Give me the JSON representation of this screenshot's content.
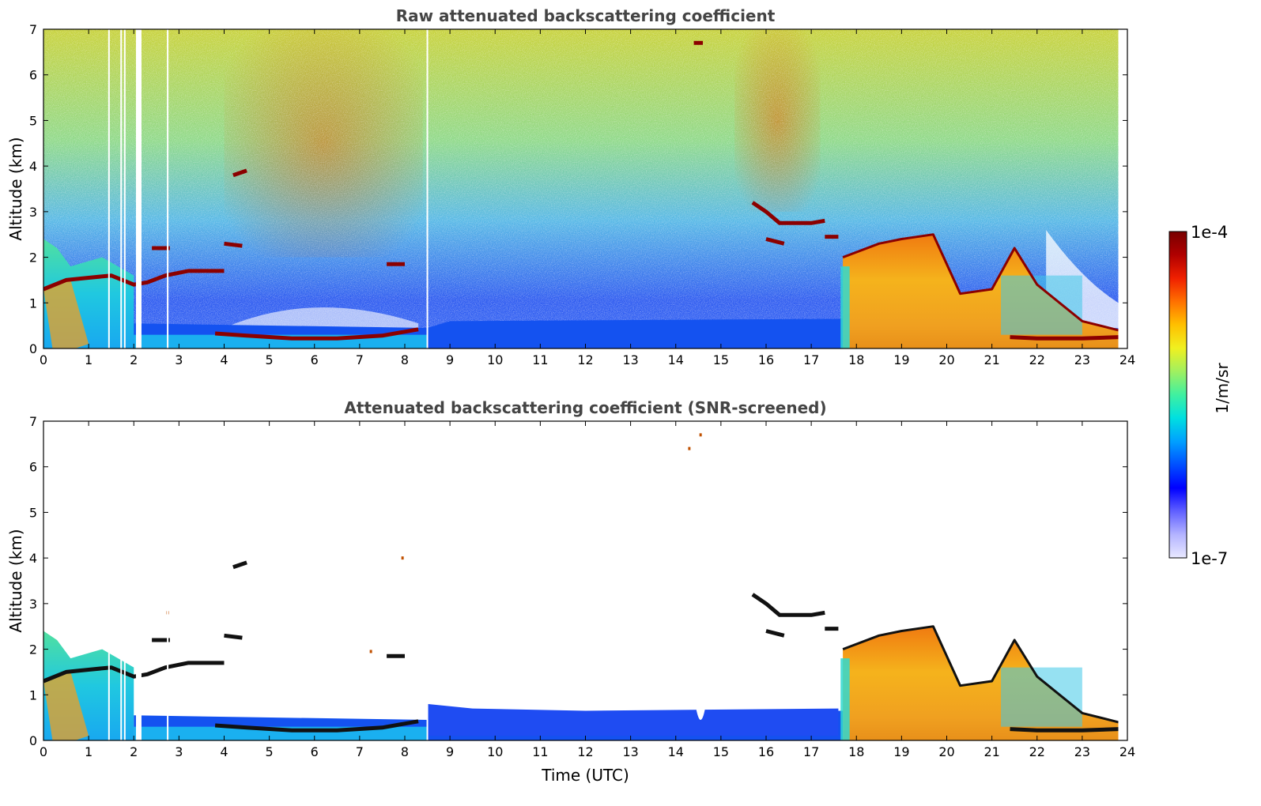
{
  "chart_data": [
    {
      "type": "heatmap",
      "title": "Raw attenuated backscattering coefficient",
      "xlabel": "",
      "ylabel": "Altitude (km)",
      "xlim": [
        0,
        24
      ],
      "ylim": [
        0,
        7
      ],
      "x_ticks": [
        0,
        1,
        2,
        3,
        4,
        5,
        6,
        7,
        8,
        9,
        10,
        11,
        12,
        13,
        14,
        15,
        16,
        17,
        18,
        19,
        20,
        21,
        22,
        23,
        24
      ],
      "y_ticks": [
        0,
        1,
        2,
        3,
        4,
        5,
        6,
        7
      ],
      "data_end_time": 23.8,
      "gaps_utc": [
        1.45,
        1.72,
        1.8,
        2.1,
        2.75,
        8.5
      ],
      "layers": [
        {
          "kind": "boundary-layer-top",
          "t": [
            0,
            0.5,
            1.0,
            1.5,
            2.0,
            2.3,
            2.7,
            3.2,
            4.0
          ],
          "alt": [
            1.3,
            1.5,
            1.55,
            1.6,
            1.4,
            1.45,
            1.6,
            1.7,
            1.7
          ]
        },
        {
          "kind": "cloud",
          "t": [
            4.2,
            4.5
          ],
          "alt": [
            3.8,
            3.9
          ]
        },
        {
          "kind": "cloud",
          "t": [
            4.0,
            4.4
          ],
          "alt": [
            2.3,
            2.25
          ]
        },
        {
          "kind": "cloud",
          "t": [
            2.4,
            2.8
          ],
          "alt": [
            2.2,
            2.2
          ]
        },
        {
          "kind": "cloud",
          "t": [
            7.6,
            8.0
          ],
          "alt": [
            1.85,
            1.85
          ]
        },
        {
          "kind": "low-layer",
          "t": [
            3.8,
            4.5,
            5.5,
            6.5,
            7.5,
            8.3
          ],
          "alt": [
            0.33,
            0.28,
            0.22,
            0.22,
            0.28,
            0.42
          ]
        },
        {
          "kind": "cloud",
          "t": [
            15.7,
            16.0,
            16.3,
            17.0,
            17.3
          ],
          "alt": [
            3.2,
            3.0,
            2.75,
            2.75,
            2.8
          ]
        },
        {
          "kind": "cloud",
          "t": [
            16.0,
            16.4
          ],
          "alt": [
            2.4,
            2.3
          ]
        },
        {
          "kind": "cloud",
          "t": [
            17.3,
            17.6
          ],
          "alt": [
            2.45,
            2.45
          ]
        },
        {
          "kind": "cloud-top",
          "t": [
            17.7,
            18.5,
            19.0,
            19.7,
            20.3,
            21.0,
            21.5,
            22.0,
            22.5,
            23.0,
            23.8
          ],
          "alt": [
            2.0,
            2.3,
            2.4,
            2.5,
            1.2,
            1.3,
            2.2,
            1.4,
            1.0,
            0.6,
            0.4
          ]
        },
        {
          "kind": "low-layer",
          "t": [
            21.4,
            22.0,
            23.0,
            23.8
          ],
          "alt": [
            0.25,
            0.22,
            0.22,
            0.25
          ]
        },
        {
          "kind": "cloud",
          "t": [
            14.4,
            14.6
          ],
          "alt": [
            6.7,
            6.7
          ]
        }
      ]
    },
    {
      "type": "heatmap",
      "title": "Attenuated backscattering coefficient (SNR-screened)",
      "xlabel": "Time (UTC)",
      "ylabel": "Altitude (km)",
      "xlim": [
        0,
        24
      ],
      "ylim": [
        0,
        7
      ],
      "x_ticks": [
        0,
        1,
        2,
        3,
        4,
        5,
        6,
        7,
        8,
        9,
        10,
        11,
        12,
        13,
        14,
        15,
        16,
        17,
        18,
        19,
        20,
        21,
        22,
        23,
        24
      ],
      "y_ticks": [
        0,
        1,
        2,
        3,
        4,
        5,
        6,
        7
      ],
      "screened_cloud_points": [
        {
          "t": 14.3,
          "alt": 6.4
        },
        {
          "t": 14.55,
          "alt": 6.7
        },
        {
          "t": 7.95,
          "alt": 4.0
        },
        {
          "t": 7.25,
          "alt": 1.95
        },
        {
          "t": 2.75,
          "alt": 2.8
        }
      ]
    }
  ],
  "colorbar": {
    "label": "1/m/sr",
    "max_label": "1e-4",
    "min_label": "1e-7",
    "scale": "log",
    "range": [
      1e-07,
      0.0001
    ],
    "colors": [
      "#e8e8ff",
      "#b4b4ff",
      "#6060ff",
      "#0000ff",
      "#0050ff",
      "#00a0ff",
      "#00e0e0",
      "#40f0a0",
      "#a0f060",
      "#f0f020",
      "#ffc000",
      "#ff7000",
      "#f02000",
      "#b00000",
      "#780000"
    ]
  }
}
